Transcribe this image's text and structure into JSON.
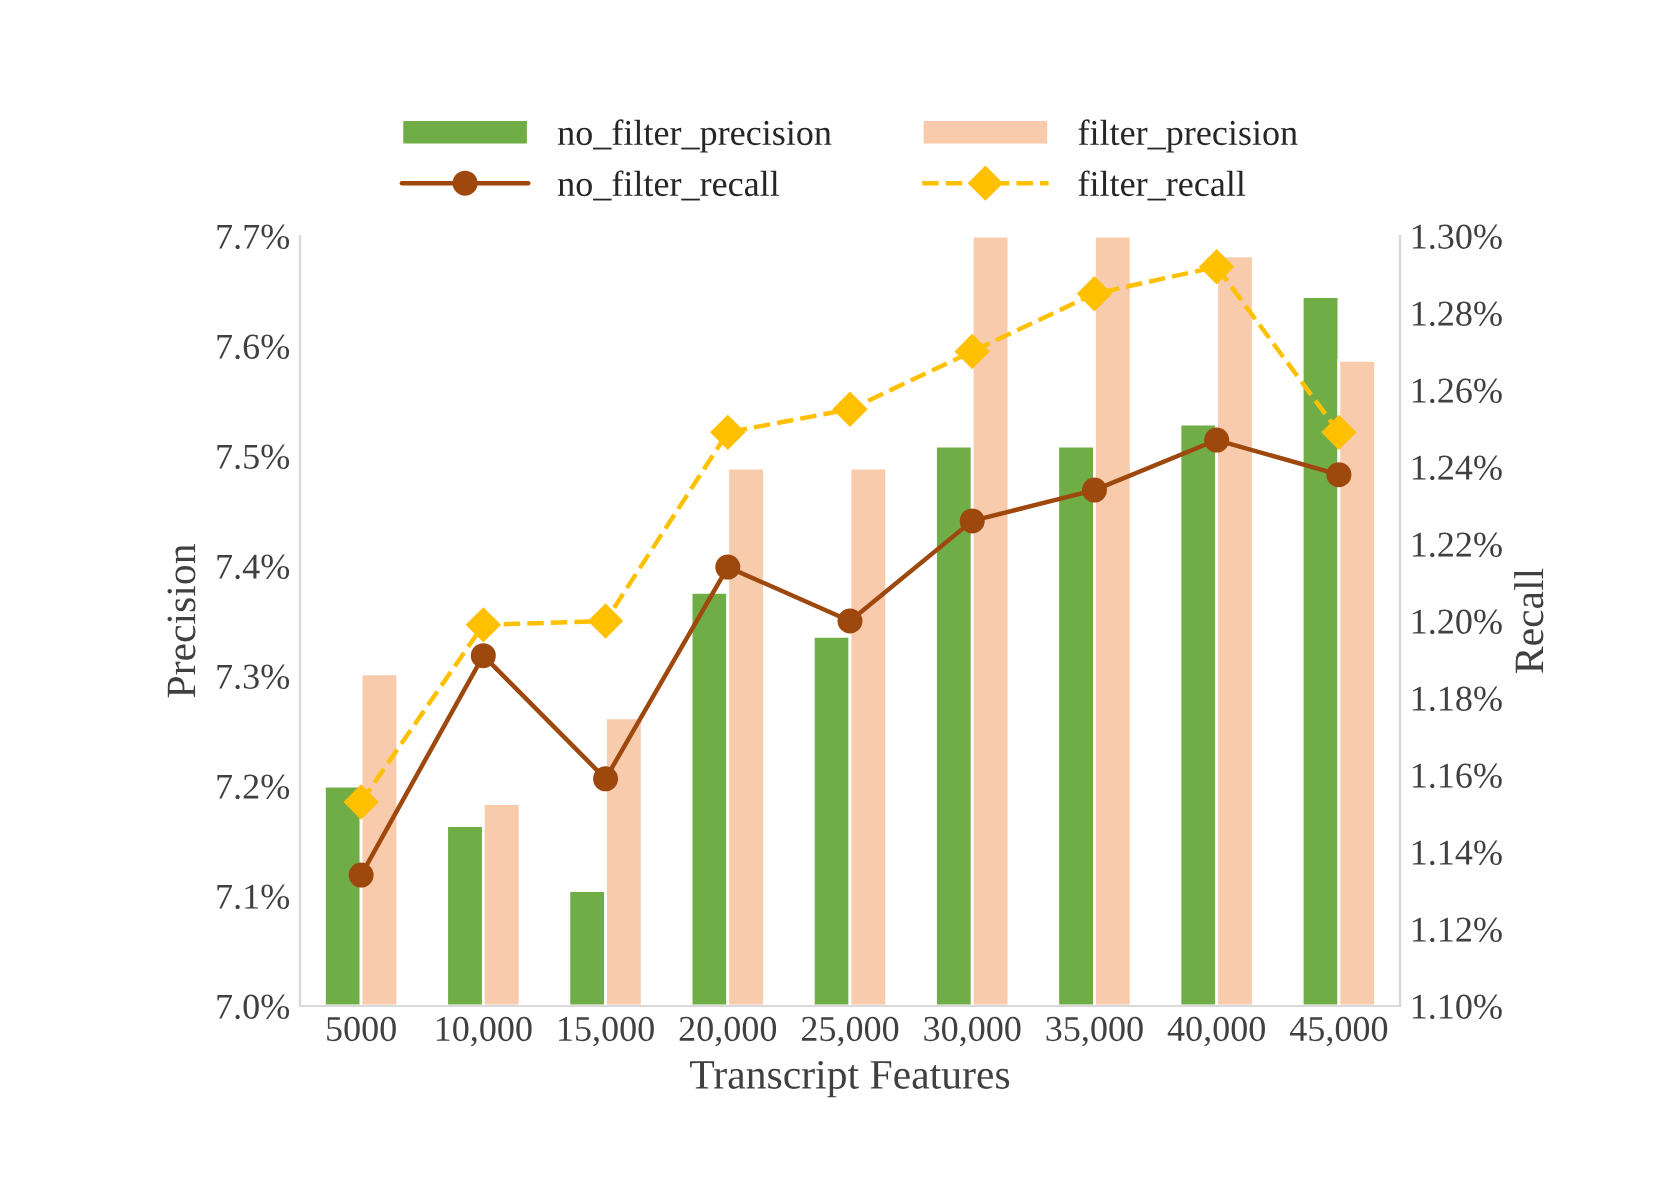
{
  "chart_data": {
    "type": "bar",
    "xlabel": "Transcript Features",
    "ylabel": "Precision",
    "y2label": "Recall",
    "categories": [
      "5000",
      "10,000",
      "15,000",
      "20,000",
      "25,000",
      "30,000",
      "35,000",
      "40,000",
      "45,000"
    ],
    "series": [
      {
        "name": "no_filter_precision",
        "color": "#70ad47",
        "values": [
          7.2,
          7.164,
          7.105,
          7.376,
          7.336,
          7.509,
          7.509,
          7.529,
          7.645
        ]
      },
      {
        "name": "filter_precision",
        "color": "#f8cbad",
        "values": [
          7.302,
          7.184,
          7.262,
          7.489,
          7.489,
          7.7,
          7.7,
          7.682,
          7.587
        ]
      },
      {
        "name": "no_filter_recall",
        "type": "line",
        "axis": "y2",
        "color": "#9e480e",
        "marker": "circle",
        "line_style": "solid",
        "values": [
          1.134,
          1.191,
          1.159,
          1.214,
          1.2,
          1.226,
          1.234,
          1.247,
          1.238
        ]
      },
      {
        "name": "filter_recall",
        "type": "line",
        "axis": "y2",
        "color": "#ffc000",
        "marker": "diamond",
        "line_style": "dashed",
        "values": [
          1.153,
          1.199,
          1.2,
          1.249,
          1.255,
          1.27,
          1.285,
          1.292,
          1.249
        ]
      }
    ],
    "ylim": [
      7.0,
      7.7
    ],
    "yticks": [
      {
        "value": 7.0,
        "label": "7.0%"
      },
      {
        "value": 7.1,
        "label": "7.1%"
      },
      {
        "value": 7.2,
        "label": "7.2%"
      },
      {
        "value": 7.3,
        "label": "7.3%"
      },
      {
        "value": 7.4,
        "label": "7.4%"
      },
      {
        "value": 7.5,
        "label": "7.5%"
      },
      {
        "value": 7.6,
        "label": "7.6%"
      },
      {
        "value": 7.7,
        "label": "7.7%"
      }
    ],
    "y2lim": [
      1.1,
      1.3
    ],
    "y2ticks": [
      {
        "value": 1.1,
        "label": "1.10%"
      },
      {
        "value": 1.12,
        "label": "1.12%"
      },
      {
        "value": 1.14,
        "label": "1.14%"
      },
      {
        "value": 1.16,
        "label": "1.16%"
      },
      {
        "value": 1.18,
        "label": "1.18%"
      },
      {
        "value": 1.2,
        "label": "1.20%"
      },
      {
        "value": 1.22,
        "label": "1.22%"
      },
      {
        "value": 1.24,
        "label": "1.24%"
      },
      {
        "value": 1.26,
        "label": "1.26%"
      },
      {
        "value": 1.28,
        "label": "1.28%"
      },
      {
        "value": 1.3,
        "label": "1.30%"
      }
    ],
    "grid": false,
    "legend": "top"
  }
}
